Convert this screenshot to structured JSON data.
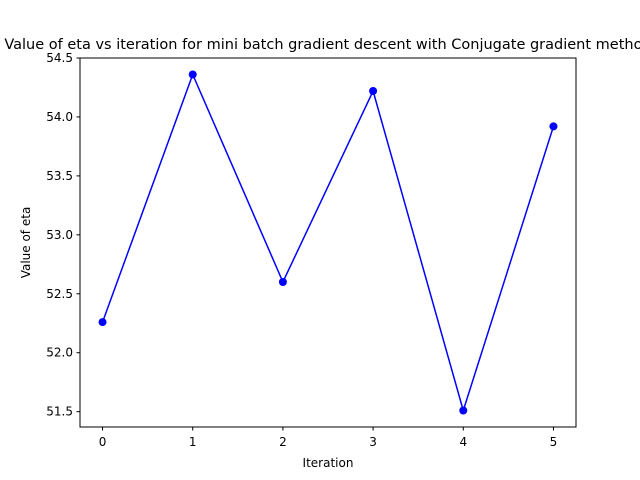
{
  "chart_data": {
    "type": "line",
    "title": "Value of eta vs iteration for mini batch gradient descent with Conjugate gradient method",
    "xlabel": "Iteration",
    "ylabel": "Value of eta",
    "x": [
      0,
      1,
      2,
      3,
      4,
      5
    ],
    "series": [
      {
        "name": "eta",
        "values": [
          52.26,
          54.36,
          52.6,
          54.22,
          51.51,
          53.92
        ],
        "color": "#0000ff",
        "marker": "circle"
      }
    ],
    "xlim": [
      -0.25,
      5.25
    ],
    "ylim": [
      51.37,
      54.5
    ],
    "xticks": [
      0,
      1,
      2,
      3,
      4,
      5
    ],
    "xtick_labels": [
      "0",
      "1",
      "2",
      "3",
      "4",
      "5"
    ],
    "yticks": [
      51.5,
      52.0,
      52.5,
      53.0,
      53.5,
      54.0,
      54.5
    ],
    "ytick_labels": [
      "51.5",
      "52.0",
      "52.5",
      "53.0",
      "53.5",
      "54.0",
      "54.5"
    ],
    "grid": false,
    "legend": "none"
  }
}
